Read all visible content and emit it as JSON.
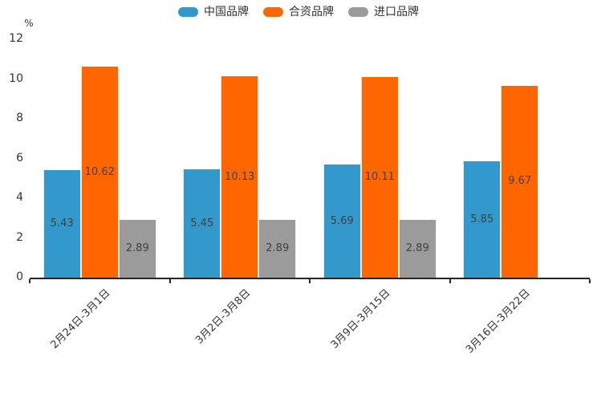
{
  "chart_data": {
    "type": "bar",
    "title": "",
    "ylabel": "%",
    "categories": [
      "2月24日-3月1日",
      "3月2日-3月8日",
      "3月9日-3月15日",
      "3月16日-3月22日"
    ],
    "series": [
      {
        "name": "中国品牌",
        "color": "#3398cb",
        "values": [
          5.43,
          5.45,
          5.69,
          5.85
        ]
      },
      {
        "name": "合资品牌",
        "color": "#ff6600",
        "values": [
          10.62,
          10.13,
          10.11,
          9.67
        ]
      },
      {
        "name": "进口品牌",
        "color": "#9b9b9b",
        "values": [
          2.89,
          2.89,
          2.89,
          null
        ]
      }
    ],
    "ylim": [
      0,
      12
    ],
    "yticks": [
      0,
      2,
      4,
      6,
      8,
      10,
      12
    ],
    "grid": false,
    "legend_position": "top",
    "value_labels_shown": true,
    "text_color": "#333333",
    "value_label_color": "#404040",
    "axis_color": "#262626"
  }
}
